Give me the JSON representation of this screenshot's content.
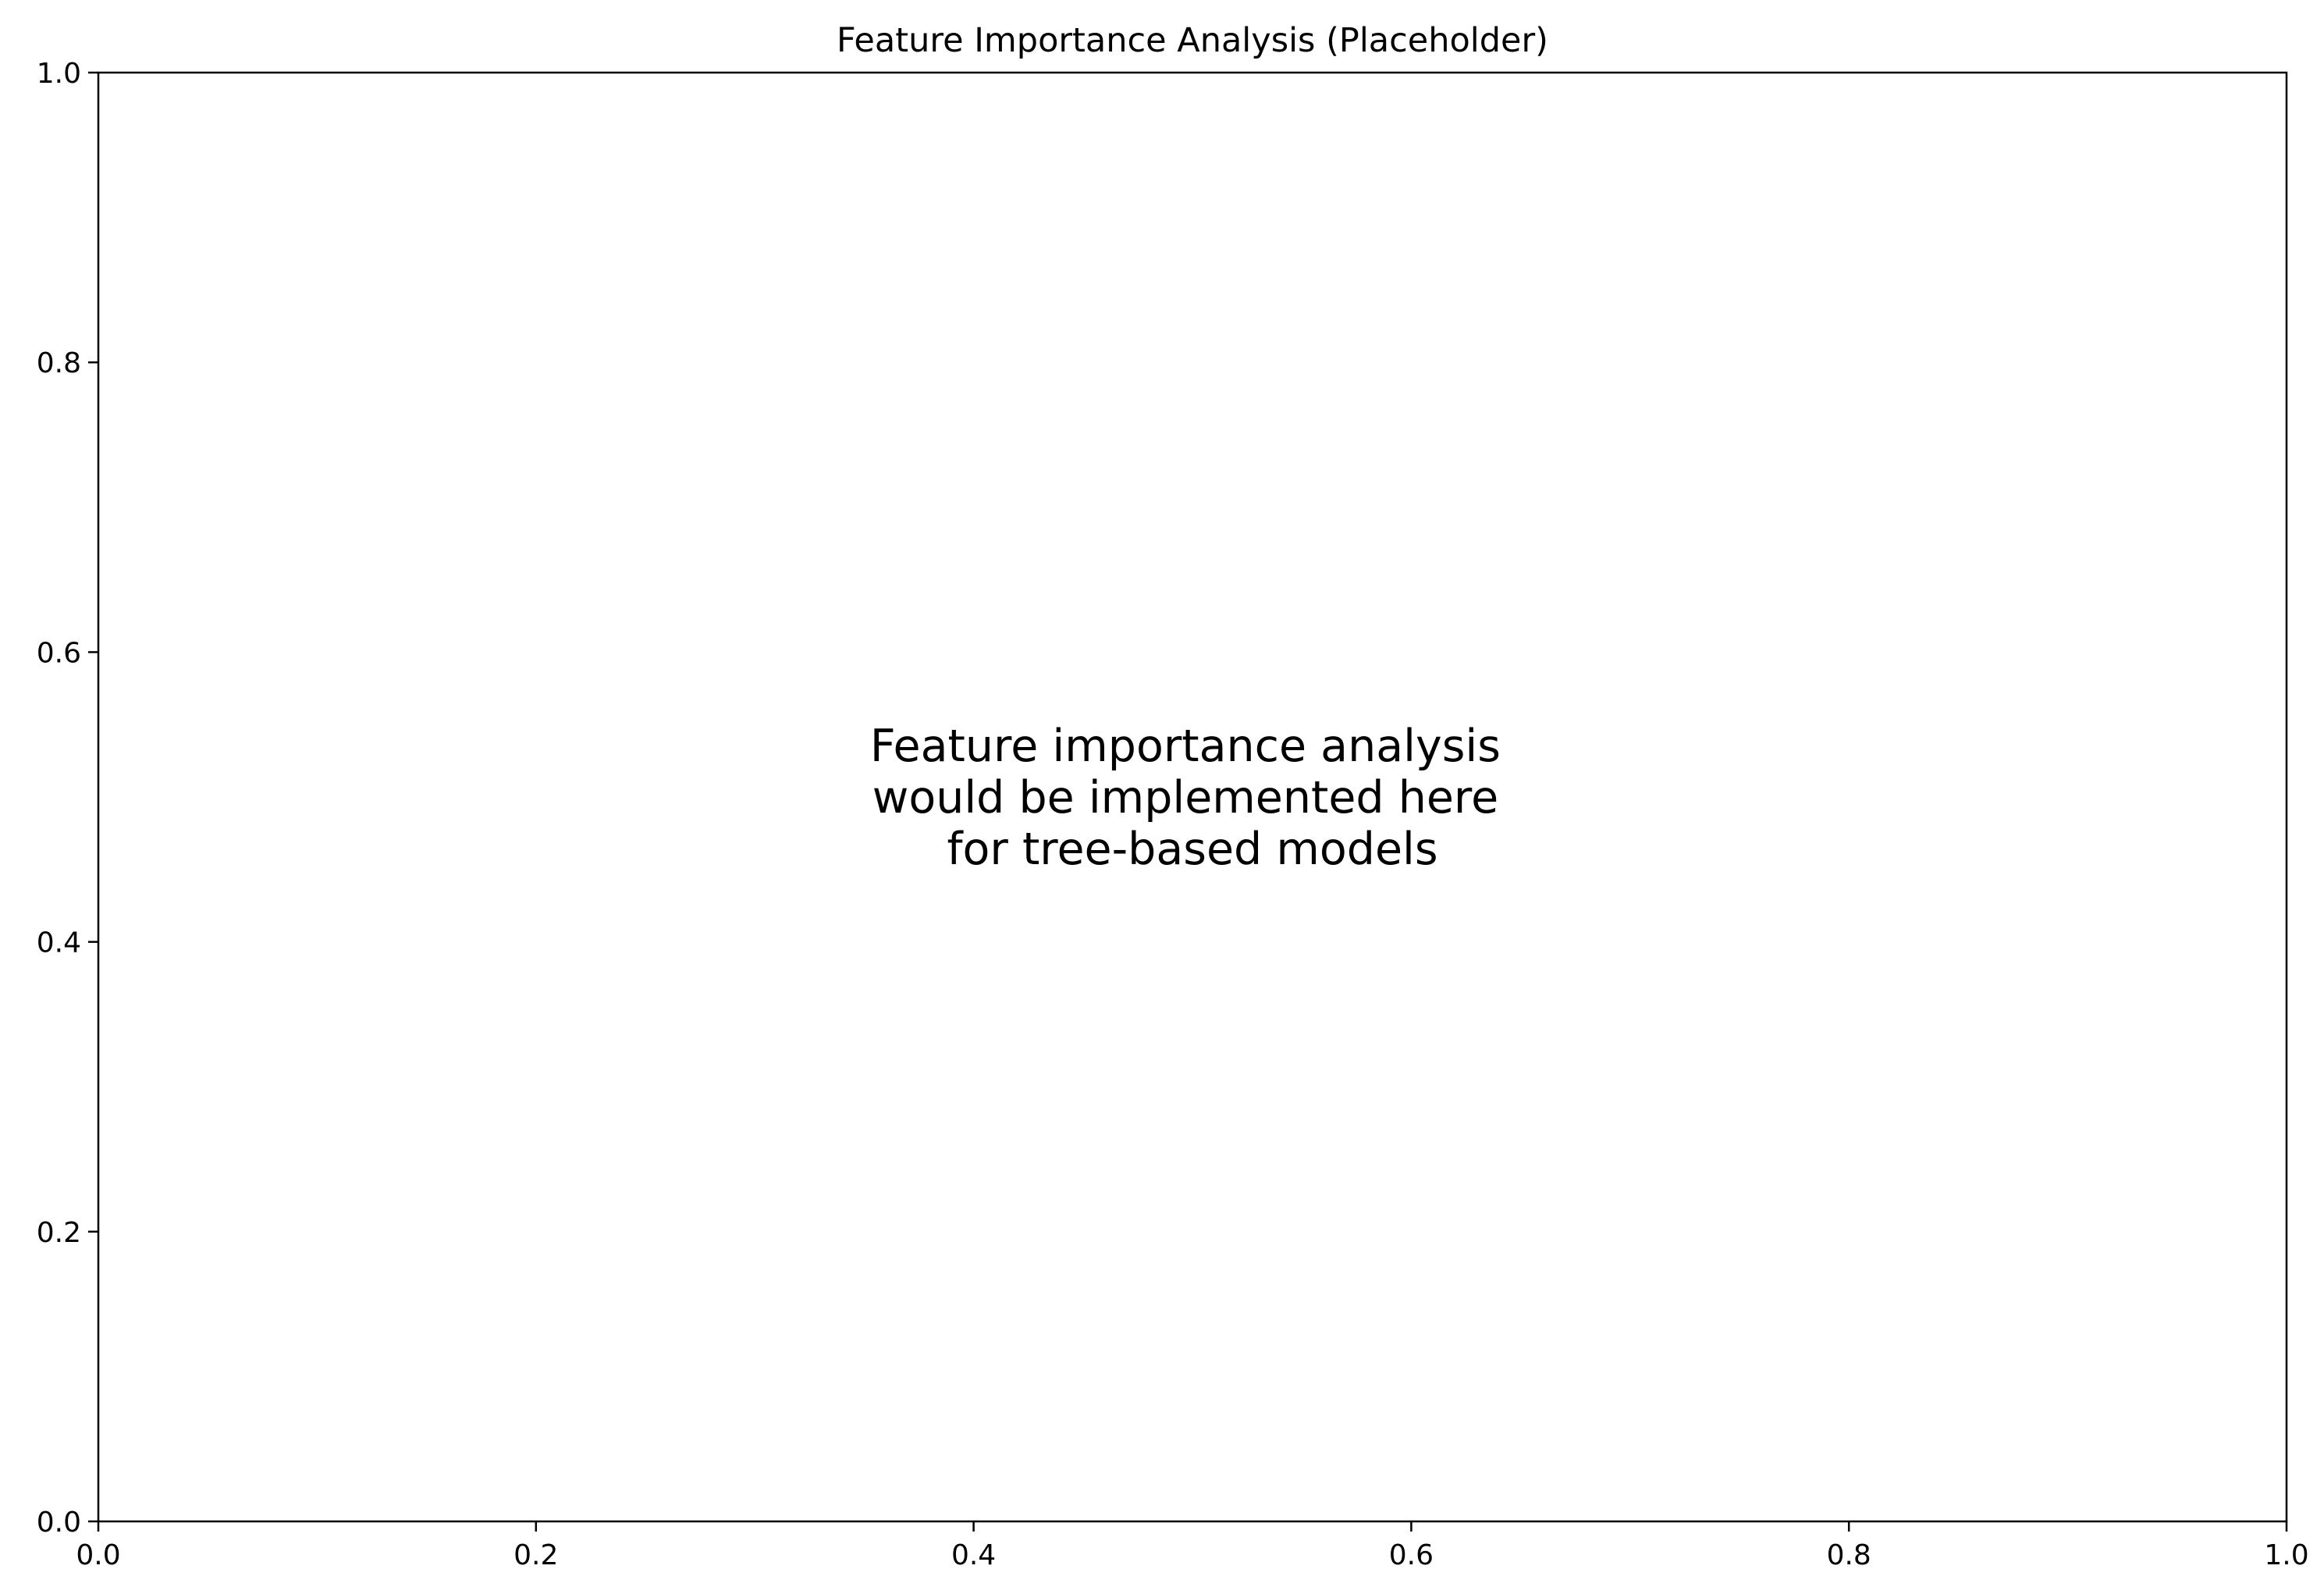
{
  "chart_data": {
    "type": "scatter",
    "title": "Feature Importance Analysis (Placeholder)",
    "xlabel": "",
    "ylabel": "",
    "xlim": [
      0.0,
      1.0
    ],
    "ylim": [
      0.0,
      1.0
    ],
    "x_ticks": [
      "0.0",
      "0.2",
      "0.4",
      "0.6",
      "0.8",
      "1.0"
    ],
    "y_ticks": [
      "0.0",
      "0.2",
      "0.4",
      "0.6",
      "0.8",
      "1.0"
    ],
    "grid": false,
    "series": [],
    "annotation": {
      "x": 0.5,
      "y": 0.5,
      "lines": [
        "Feature importance analysis",
        "would be implemented here",
        "for tree-based models"
      ]
    }
  }
}
